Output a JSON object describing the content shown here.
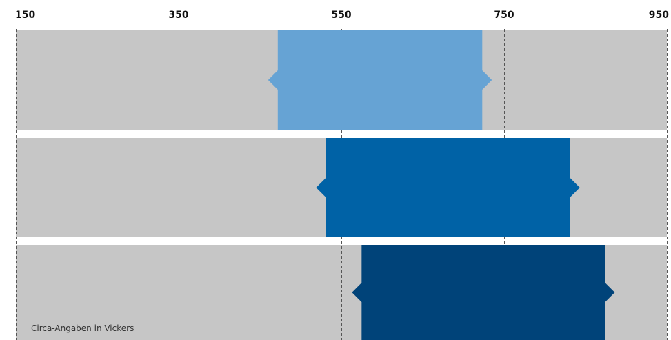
{
  "chart_data": {
    "type": "bar",
    "orientation": "horizontal-range",
    "title": "",
    "xlabel": "",
    "ylabel": "",
    "xlim": [
      150,
      950
    ],
    "x_ticks": [
      150,
      350,
      550,
      750,
      950
    ],
    "grid": true,
    "grid_style": "dashed",
    "note": "Circa-Angaben in Vickers",
    "series": [
      {
        "start": 460,
        "end": 735,
        "color": "#66a3d4"
      },
      {
        "start": 519,
        "end": 843,
        "color": "#0062a6"
      },
      {
        "start": 563,
        "end": 886,
        "color": "#004379"
      }
    ],
    "colors": {
      "row_background": "#c6c6c6",
      "grid_line": "#555555",
      "tick_text": "#111111",
      "note_text": "#333333"
    }
  }
}
